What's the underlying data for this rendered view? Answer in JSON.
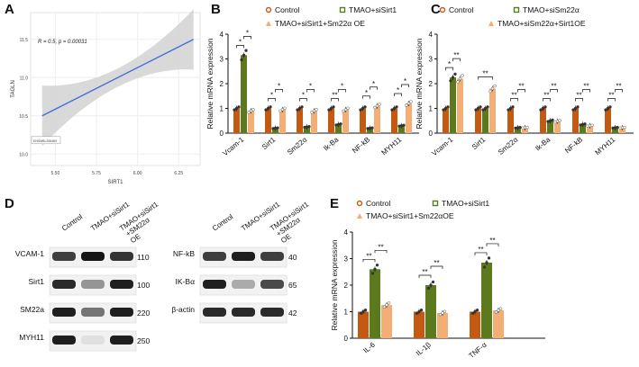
{
  "panel_letters": {
    "a": "A",
    "b": "B",
    "c": "C",
    "d": "D",
    "e": "E"
  },
  "colors": {
    "control": "#c45a11",
    "green": "#5c7a1d",
    "peach": "#f2ae74",
    "regression_line": "#3f6fd8",
    "confidence_band": "#d2d2d2"
  },
  "chart_data": [
    {
      "id": "A",
      "type": "line",
      "stat_label": "R = 0.5, p = 0.00031",
      "xlabel": "SIRT1",
      "ylabel": "TAGLN",
      "x_ticks": [
        "5.50",
        "5.75",
        "6.00",
        "6.25"
      ],
      "y_ticks": [
        "10.0",
        "10.5",
        "11.0",
        "11.5"
      ],
      "xlim": [
        5.35,
        6.38
      ],
      "ylim": [
        9.85,
        11.85
      ],
      "fit_line": {
        "x": [
          5.42,
          6.34
        ],
        "y": [
          10.5,
          11.5
        ]
      },
      "annotation": "ENSMBL265489"
    },
    {
      "id": "B",
      "type": "bar",
      "ylabel": "Relative mRNA expression",
      "ylim": [
        0,
        4
      ],
      "y_ticks": [
        "0",
        "1",
        "2",
        "3",
        "4"
      ],
      "categories": [
        "Vcam-1",
        "Sirt1",
        "Sm22α",
        "Ik-Ba",
        "NF-kB",
        "MYH11"
      ],
      "legend": [
        "Control",
        "TMAO+siSirt1",
        "TMAO+siSirt1+Sm22α OE"
      ],
      "series": [
        {
          "name": "Control",
          "values": [
            1.0,
            1.0,
            1.0,
            1.0,
            1.0,
            1.0
          ]
        },
        {
          "name": "TMAO+siSirt1",
          "values": [
            3.15,
            0.2,
            0.25,
            0.35,
            0.2,
            0.3
          ]
        },
        {
          "name": "TMAO+siSirt1+Sm22α OE",
          "values": [
            0.9,
            0.95,
            0.9,
            0.95,
            1.1,
            1.2
          ]
        }
      ],
      "sig_labels": [
        [
          "*",
          "*"
        ],
        [
          "*",
          "*"
        ],
        [
          "*",
          "*"
        ],
        [
          "**",
          "*"
        ],
        [
          "*",
          "*"
        ],
        [
          "*",
          "*"
        ]
      ]
    },
    {
      "id": "C",
      "type": "bar",
      "ylabel": "Relative mRNA expression",
      "ylim": [
        0,
        4
      ],
      "y_ticks": [
        "0",
        "1",
        "2",
        "3",
        "4"
      ],
      "categories": [
        "Vcam-1",
        "Sirt1",
        "Sm22α",
        "Ik-Ba",
        "NF-kB",
        "MYH11"
      ],
      "legend": [
        "Control",
        "TMAO+siSm22α",
        "TMAO+siSm22α+Sirt1OE"
      ],
      "series": [
        {
          "name": "Control",
          "values": [
            1.0,
            1.0,
            1.0,
            1.0,
            1.0,
            1.0
          ]
        },
        {
          "name": "TMAO+siSm22α",
          "values": [
            2.25,
            1.0,
            0.22,
            0.5,
            0.35,
            0.22
          ]
        },
        {
          "name": "TMAO+siSm22α+Sirt1OE",
          "values": [
            2.2,
            1.8,
            0.22,
            0.48,
            0.3,
            0.22
          ]
        }
      ],
      "sig_labels": [
        [
          "*",
          "**"
        ],
        [
          "**"
        ],
        [
          "**",
          "**"
        ],
        [
          "**",
          "**"
        ],
        [
          "**",
          "**"
        ],
        [
          "**",
          "**"
        ]
      ]
    },
    {
      "id": "E",
      "type": "bar",
      "ylabel": "Relative mRNA expression",
      "ylim": [
        0,
        4
      ],
      "y_ticks": [
        "0",
        "1",
        "2",
        "3",
        "4"
      ],
      "categories": [
        "IL-6",
        "IL-1β",
        "TNF-α"
      ],
      "legend": [
        "Control",
        "TMAO+siSirt1",
        "TMAO+siSirt1+Sm22αOE"
      ],
      "series": [
        {
          "name": "Control",
          "values": [
            1.0,
            1.0,
            1.0
          ]
        },
        {
          "name": "TMAO+siSirt1",
          "values": [
            2.6,
            2.0,
            2.85
          ]
        },
        {
          "name": "TMAO+siSirt1+Sm22αOE",
          "values": [
            1.25,
            0.95,
            1.05
          ]
        }
      ],
      "sig_labels": [
        [
          "**",
          "**"
        ],
        [
          "**",
          "**"
        ],
        [
          "**",
          "**"
        ]
      ]
    }
  ],
  "blots": {
    "left": {
      "columns": [
        "Control",
        "TMAO+siSirt1",
        "TMAO+siSirt1 +SM22α OE"
      ],
      "rows": [
        {
          "label": "VCAM-1",
          "size": "110",
          "intensity": [
            0.8,
            1.0,
            0.85
          ]
        },
        {
          "label": "Sirt1",
          "size": "100",
          "intensity": [
            0.9,
            0.4,
            0.95
          ]
        },
        {
          "label": "SM22a",
          "size": "220",
          "intensity": [
            0.95,
            0.55,
            0.95
          ]
        },
        {
          "label": "MYH11",
          "size": "250",
          "intensity": [
            0.95,
            0.05,
            0.95
          ]
        }
      ]
    },
    "right": {
      "columns": [
        "Control",
        "TMAO+siSirt1",
        "TMAO+siSirt1 +SM22α OE"
      ],
      "rows": [
        {
          "label": "NF-kB",
          "size": "40",
          "intensity": [
            0.8,
            0.95,
            0.8
          ]
        },
        {
          "label": "IK-Bα",
          "size": "65",
          "intensity": [
            0.95,
            0.3,
            0.75
          ]
        },
        {
          "label": "β-actin",
          "size": "42",
          "intensity": [
            0.9,
            0.9,
            0.9
          ]
        }
      ]
    }
  }
}
